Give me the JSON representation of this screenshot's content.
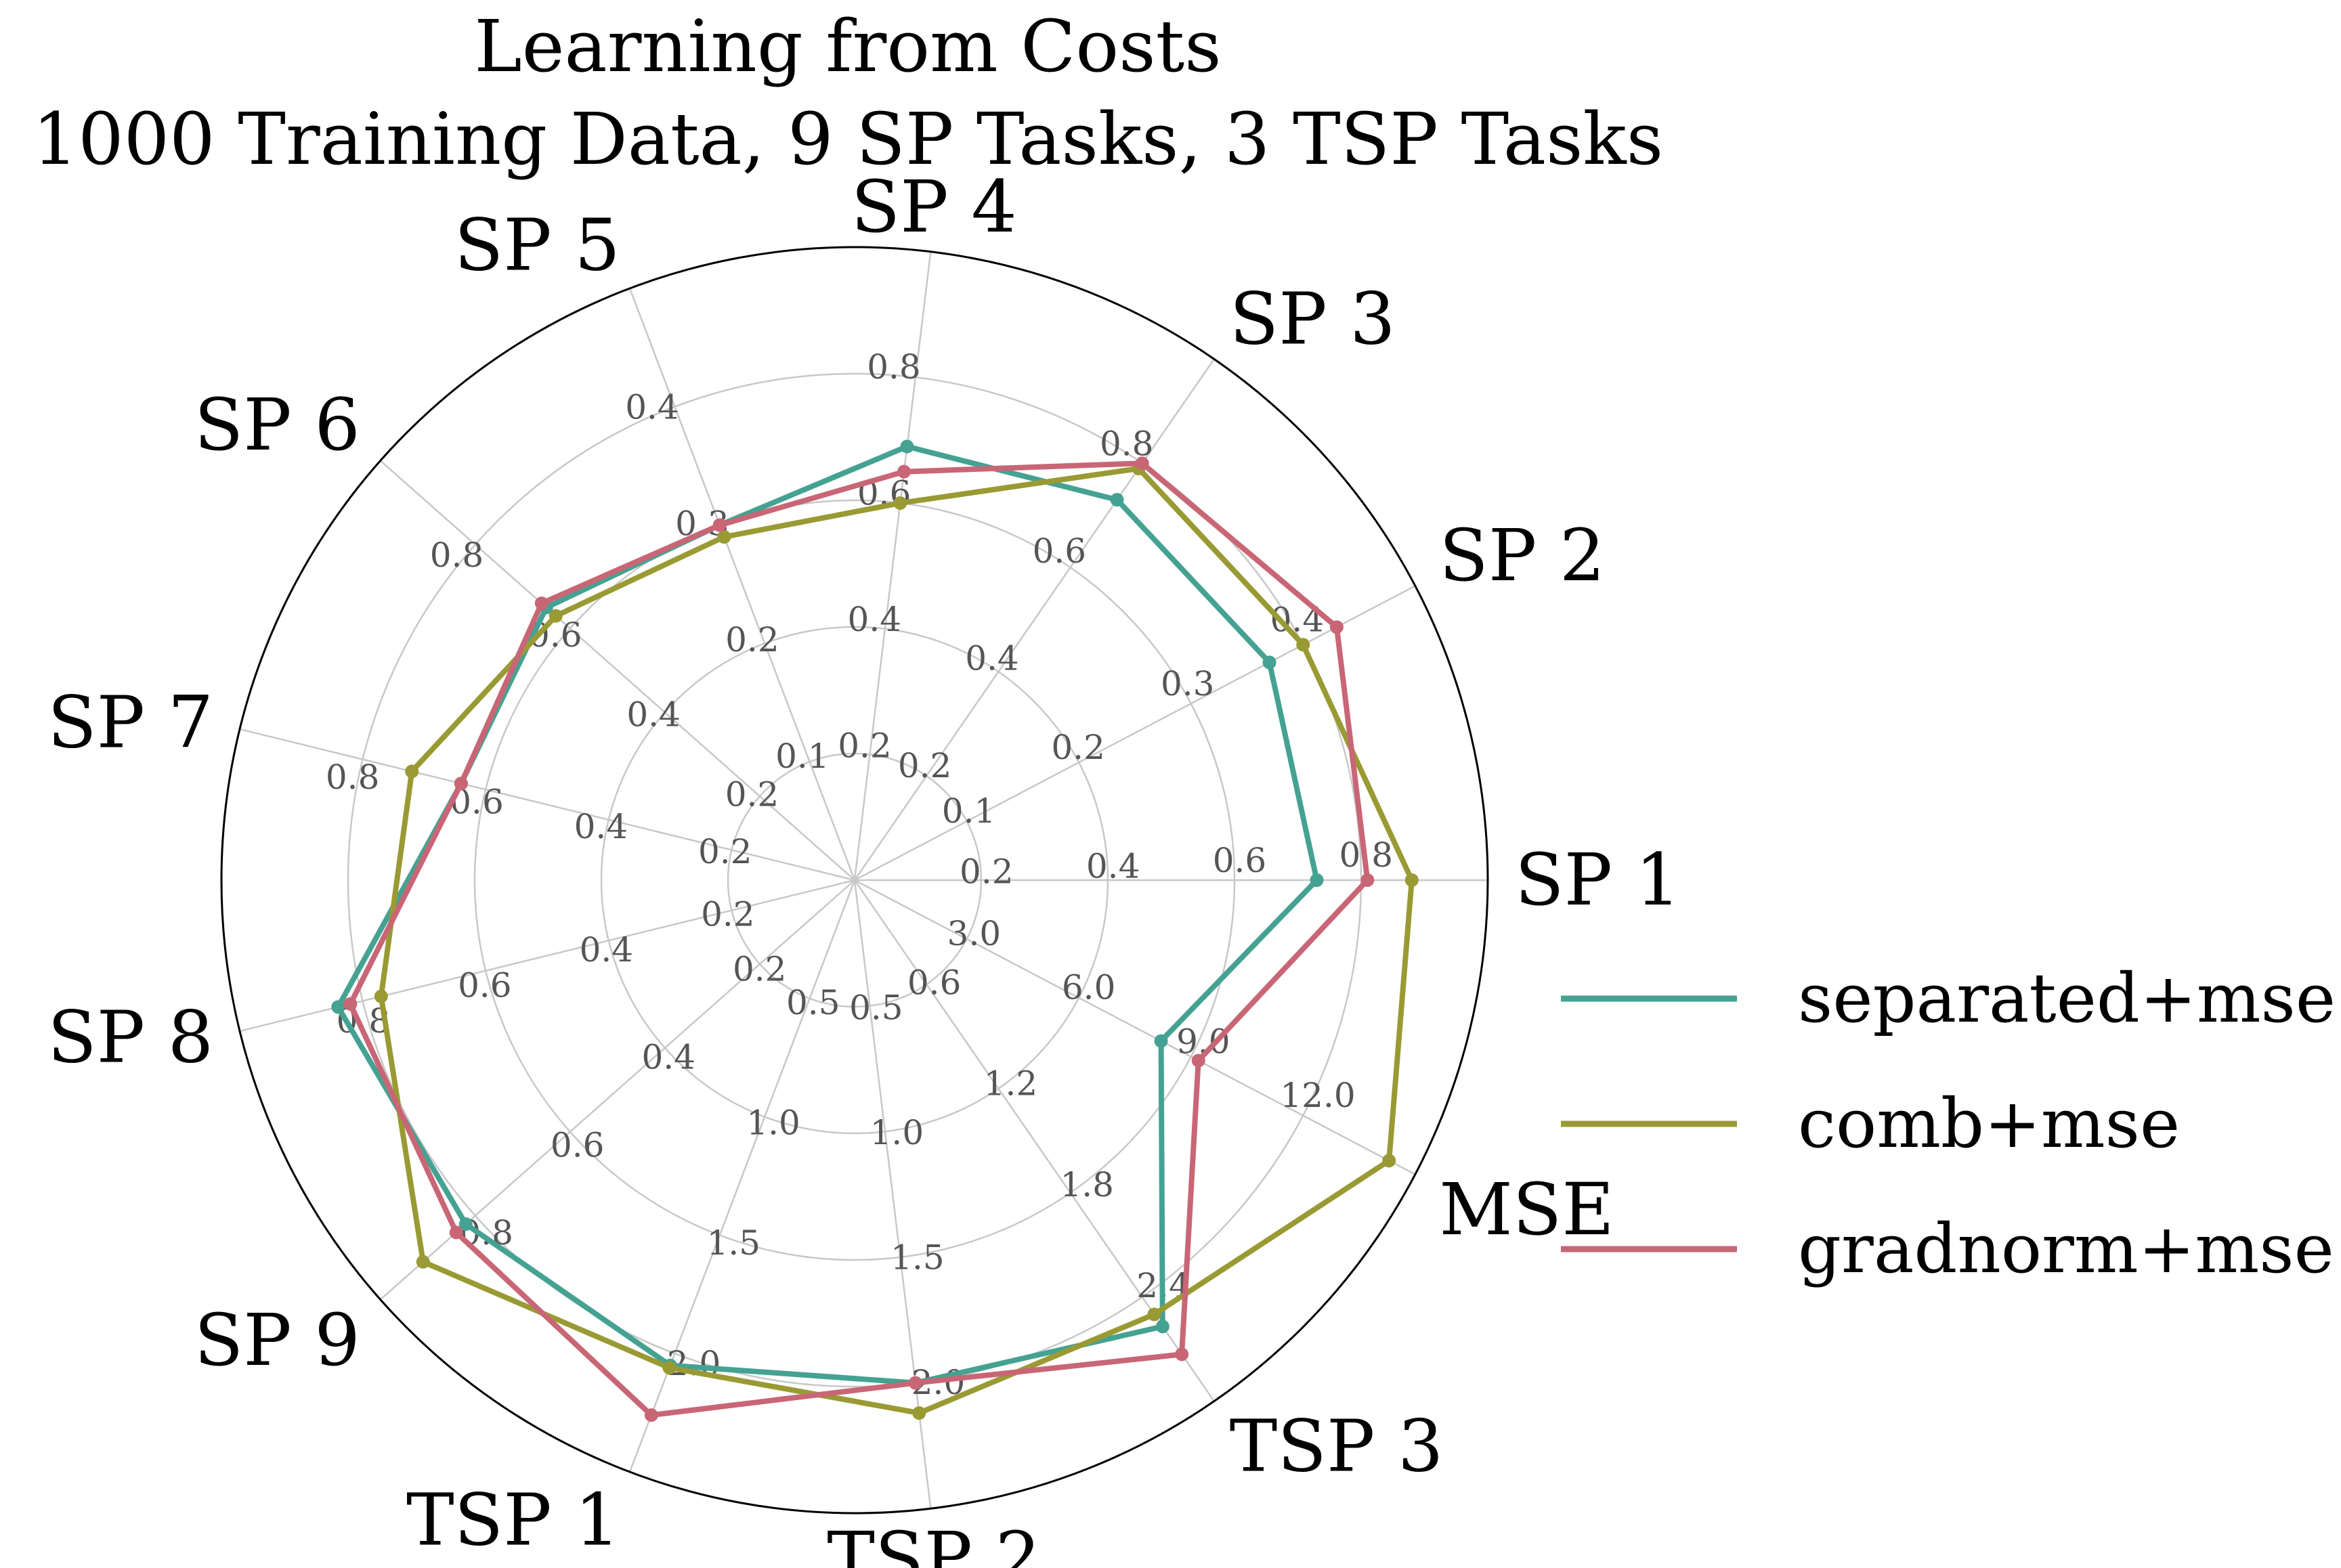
{
  "chart_data": {
    "type": "radar",
    "title": "Learning from Costs",
    "subtitle": "1000 Training Data, 9 SP Tasks, 3 TSP Tasks",
    "axes": [
      {
        "label": "SP 1",
        "angle_deg": 0,
        "max": 1.0,
        "ticks": [
          0.2,
          0.4,
          0.6,
          0.8
        ]
      },
      {
        "label": "SP 2",
        "angle_deg": 27.7,
        "max": 0.5,
        "ticks": [
          0.1,
          0.2,
          0.3,
          0.4
        ]
      },
      {
        "label": "SP 3",
        "angle_deg": 55.4,
        "max": 1.0,
        "ticks": [
          0.2,
          0.4,
          0.6,
          0.8
        ]
      },
      {
        "label": "SP 4",
        "angle_deg": 83.1,
        "max": 1.0,
        "ticks": [
          0.2,
          0.4,
          0.6,
          0.8
        ]
      },
      {
        "label": "SP 5",
        "angle_deg": 110.8,
        "max": 0.5,
        "ticks": [
          0.1,
          0.2,
          0.3,
          0.4
        ]
      },
      {
        "label": "SP 6",
        "angle_deg": 138.5,
        "max": 1.0,
        "ticks": [
          0.2,
          0.4,
          0.6,
          0.8
        ]
      },
      {
        "label": "SP 7",
        "angle_deg": 166.2,
        "max": 1.0,
        "ticks": [
          0.2,
          0.4,
          0.6,
          0.8
        ]
      },
      {
        "label": "SP 8",
        "angle_deg": 193.8,
        "max": 1.0,
        "ticks": [
          0.2,
          0.4,
          0.6,
          0.8
        ]
      },
      {
        "label": "SP 9",
        "angle_deg": 221.5,
        "max": 1.0,
        "ticks": [
          0.2,
          0.4,
          0.6,
          0.8
        ]
      },
      {
        "label": "TSP 1",
        "angle_deg": 249.2,
        "max": 2.5,
        "ticks": [
          0.5,
          1.0,
          1.5,
          2.0
        ]
      },
      {
        "label": "TSP 2",
        "angle_deg": 276.9,
        "max": 2.5,
        "ticks": [
          0.5,
          1.0,
          1.5,
          2.0
        ]
      },
      {
        "label": "TSP 3",
        "angle_deg": 304.6,
        "max": 3.0,
        "ticks": [
          0.6,
          1.2,
          1.8,
          2.4
        ]
      },
      {
        "label": "MSE",
        "angle_deg": 332.3,
        "max": 15.0,
        "ticks": [
          3.0,
          6.0,
          9.0,
          12.0
        ]
      }
    ],
    "series": [
      {
        "name": "separated+mse",
        "color": "#45a292",
        "values": [
          0.73,
          0.37,
          0.73,
          0.69,
          0.3,
          0.65,
          0.64,
          0.84,
          0.82,
          2.05,
          2.0,
          2.57,
          8.2
        ]
      },
      {
        "name": "comb+mse",
        "color": "#9a9a34",
        "values": [
          0.88,
          0.4,
          0.79,
          0.6,
          0.29,
          0.63,
          0.72,
          0.77,
          0.91,
          2.06,
          2.12,
          2.5,
          14.3
        ]
      },
      {
        "name": "gradnorm+mse",
        "color": "#c96676",
        "values": [
          0.81,
          0.43,
          0.8,
          0.65,
          0.3,
          0.66,
          0.64,
          0.82,
          0.84,
          2.26,
          2.0,
          2.73,
          9.2
        ]
      }
    ],
    "legend_position": "right",
    "grid": true
  }
}
